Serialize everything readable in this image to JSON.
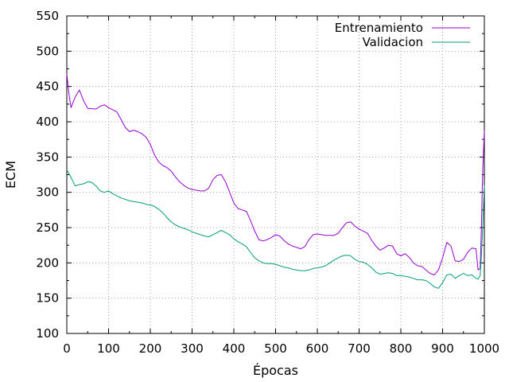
{
  "chart_data": {
    "type": "line",
    "title": "",
    "xlabel": "Épocas",
    "ylabel": "ECM",
    "xlim": [
      0,
      1000
    ],
    "ylim": [
      100,
      550
    ],
    "xticks": [
      0,
      100,
      200,
      300,
      400,
      500,
      600,
      700,
      800,
      900,
      1000
    ],
    "yticks": [
      100,
      150,
      200,
      250,
      300,
      350,
      400,
      450,
      500,
      550
    ],
    "grid": true,
    "legend_position": "top-right",
    "series": [
      {
        "name": "Entrenamiento",
        "color": "#9400d3",
        "points": [
          [
            0,
            468
          ],
          [
            5,
            440
          ],
          [
            10,
            420
          ],
          [
            20,
            435
          ],
          [
            30,
            445
          ],
          [
            40,
            430
          ],
          [
            50,
            419
          ],
          [
            70,
            418
          ],
          [
            80,
            422
          ],
          [
            90,
            424
          ],
          [
            100,
            420
          ],
          [
            110,
            417
          ],
          [
            120,
            414
          ],
          [
            130,
            403
          ],
          [
            140,
            392
          ],
          [
            150,
            386
          ],
          [
            160,
            388
          ],
          [
            170,
            386
          ],
          [
            180,
            383
          ],
          [
            190,
            378
          ],
          [
            200,
            368
          ],
          [
            210,
            353
          ],
          [
            220,
            343
          ],
          [
            230,
            338
          ],
          [
            240,
            335
          ],
          [
            250,
            330
          ],
          [
            260,
            322
          ],
          [
            270,
            315
          ],
          [
            280,
            310
          ],
          [
            290,
            306
          ],
          [
            300,
            304
          ],
          [
            310,
            303
          ],
          [
            320,
            302
          ],
          [
            330,
            302
          ],
          [
            340,
            306
          ],
          [
            350,
            318
          ],
          [
            360,
            324
          ],
          [
            370,
            325
          ],
          [
            380,
            315
          ],
          [
            390,
            300
          ],
          [
            400,
            285
          ],
          [
            410,
            277
          ],
          [
            420,
            275
          ],
          [
            430,
            273
          ],
          [
            440,
            260
          ],
          [
            450,
            245
          ],
          [
            460,
            233
          ],
          [
            470,
            231
          ],
          [
            480,
            233
          ],
          [
            490,
            236
          ],
          [
            500,
            240
          ],
          [
            510,
            238
          ],
          [
            520,
            232
          ],
          [
            530,
            227
          ],
          [
            540,
            224
          ],
          [
            550,
            222
          ],
          [
            560,
            220
          ],
          [
            570,
            223
          ],
          [
            580,
            233
          ],
          [
            590,
            240
          ],
          [
            600,
            241
          ],
          [
            610,
            240
          ],
          [
            620,
            239
          ],
          [
            630,
            239
          ],
          [
            640,
            239
          ],
          [
            650,
            242
          ],
          [
            660,
            250
          ],
          [
            670,
            257
          ],
          [
            680,
            258
          ],
          [
            690,
            252
          ],
          [
            700,
            248
          ],
          [
            710,
            245
          ],
          [
            720,
            242
          ],
          [
            730,
            232
          ],
          [
            740,
            224
          ],
          [
            750,
            218
          ],
          [
            760,
            221
          ],
          [
            770,
            225
          ],
          [
            780,
            224
          ],
          [
            790,
            213
          ],
          [
            800,
            210
          ],
          [
            810,
            213
          ],
          [
            820,
            208
          ],
          [
            830,
            200
          ],
          [
            840,
            196
          ],
          [
            850,
            195
          ],
          [
            860,
            190
          ],
          [
            870,
            185
          ],
          [
            880,
            183
          ],
          [
            890,
            190
          ],
          [
            900,
            207
          ],
          [
            910,
            229
          ],
          [
            920,
            224
          ],
          [
            930,
            203
          ],
          [
            940,
            202
          ],
          [
            950,
            205
          ],
          [
            960,
            215
          ],
          [
            970,
            221
          ],
          [
            980,
            220
          ],
          [
            985,
            190
          ],
          [
            990,
            192
          ],
          [
            993,
            250
          ],
          [
            996,
            330
          ],
          [
            1000,
            387
          ]
        ]
      },
      {
        "name": "Validacion",
        "color": "#009e73",
        "points": [
          [
            0,
            332
          ],
          [
            10,
            321
          ],
          [
            20,
            309
          ],
          [
            30,
            311
          ],
          [
            40,
            312
          ],
          [
            50,
            315
          ],
          [
            60,
            314
          ],
          [
            70,
            309
          ],
          [
            80,
            302
          ],
          [
            90,
            300
          ],
          [
            100,
            302
          ],
          [
            110,
            298
          ],
          [
            120,
            295
          ],
          [
            130,
            292
          ],
          [
            140,
            290
          ],
          [
            150,
            288
          ],
          [
            160,
            287
          ],
          [
            170,
            286
          ],
          [
            180,
            285
          ],
          [
            190,
            283
          ],
          [
            200,
            282
          ],
          [
            210,
            280
          ],
          [
            220,
            276
          ],
          [
            230,
            271
          ],
          [
            240,
            264
          ],
          [
            250,
            258
          ],
          [
            260,
            254
          ],
          [
            270,
            251
          ],
          [
            280,
            249
          ],
          [
            290,
            247
          ],
          [
            300,
            244
          ],
          [
            310,
            242
          ],
          [
            320,
            240
          ],
          [
            330,
            238
          ],
          [
            340,
            237
          ],
          [
            350,
            240
          ],
          [
            360,
            243
          ],
          [
            370,
            246
          ],
          [
            380,
            243
          ],
          [
            390,
            240
          ],
          [
            400,
            234
          ],
          [
            410,
            230
          ],
          [
            420,
            227
          ],
          [
            430,
            223
          ],
          [
            440,
            215
          ],
          [
            450,
            207
          ],
          [
            460,
            203
          ],
          [
            470,
            200
          ],
          [
            480,
            199
          ],
          [
            490,
            199
          ],
          [
            500,
            198
          ],
          [
            510,
            196
          ],
          [
            520,
            194
          ],
          [
            530,
            193
          ],
          [
            540,
            191
          ],
          [
            550,
            190
          ],
          [
            560,
            189
          ],
          [
            570,
            189
          ],
          [
            580,
            190
          ],
          [
            590,
            192
          ],
          [
            600,
            193
          ],
          [
            610,
            194
          ],
          [
            620,
            196
          ],
          [
            630,
            200
          ],
          [
            640,
            204
          ],
          [
            650,
            207
          ],
          [
            660,
            210
          ],
          [
            670,
            211
          ],
          [
            680,
            210
          ],
          [
            690,
            205
          ],
          [
            700,
            202
          ],
          [
            710,
            201
          ],
          [
            720,
            198
          ],
          [
            730,
            193
          ],
          [
            740,
            187
          ],
          [
            750,
            184
          ],
          [
            760,
            185
          ],
          [
            770,
            186
          ],
          [
            780,
            185
          ],
          [
            790,
            182
          ],
          [
            800,
            182
          ],
          [
            810,
            181
          ],
          [
            820,
            180
          ],
          [
            830,
            178
          ],
          [
            840,
            176
          ],
          [
            850,
            176
          ],
          [
            860,
            175
          ],
          [
            870,
            171
          ],
          [
            880,
            166
          ],
          [
            890,
            164
          ],
          [
            900,
            172
          ],
          [
            910,
            183
          ],
          [
            920,
            184
          ],
          [
            930,
            178
          ],
          [
            940,
            182
          ],
          [
            950,
            185
          ],
          [
            960,
            182
          ],
          [
            970,
            183
          ],
          [
            980,
            178
          ],
          [
            985,
            177
          ],
          [
            990,
            182
          ],
          [
            993,
            210
          ],
          [
            996,
            250
          ],
          [
            1000,
            310
          ]
        ]
      }
    ]
  }
}
